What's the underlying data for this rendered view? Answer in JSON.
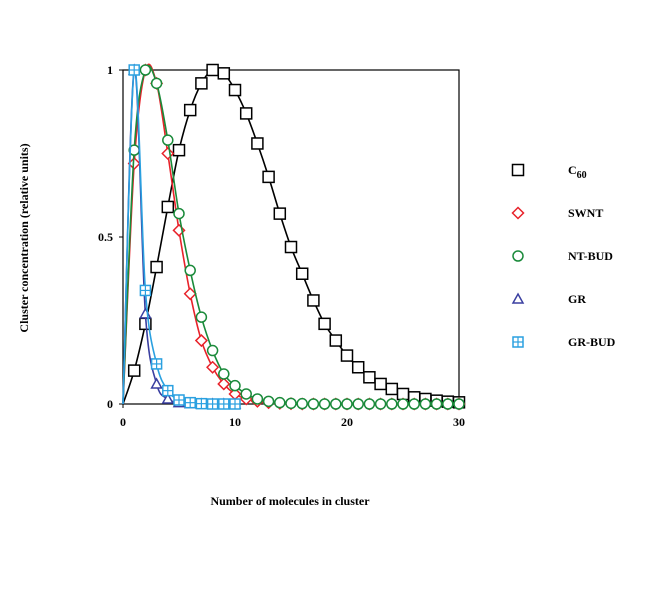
{
  "chart_data": {
    "type": "line",
    "title": "",
    "xlabel": "Number of molecules in cluster",
    "ylabel": "Cluster concentration (relative units)",
    "xlim": [
      0,
      30
    ],
    "ylim": [
      0,
      1
    ],
    "x_ticks": [
      0,
      10,
      20,
      30
    ],
    "y_ticks": [
      {
        "value": 0,
        "label": "0"
      },
      {
        "value": 0.5,
        "label": "0.5"
      },
      {
        "value": 1,
        "label": "1"
      }
    ],
    "grid": false,
    "legend_position": "right",
    "series": [
      {
        "name": "C60",
        "name_main": "C",
        "name_sub": "60",
        "marker": "square",
        "color": "#000000",
        "x": [
          0,
          1,
          2,
          3,
          4,
          5,
          6,
          7,
          8,
          9,
          10,
          11,
          12,
          13,
          14,
          15,
          16,
          17,
          18,
          19,
          20,
          21,
          22,
          23,
          24,
          25,
          26,
          27,
          28,
          29,
          30
        ],
        "y": [
          0,
          0.1,
          0.24,
          0.41,
          0.59,
          0.76,
          0.88,
          0.96,
          1.0,
          0.99,
          0.94,
          0.87,
          0.78,
          0.68,
          0.57,
          0.47,
          0.39,
          0.31,
          0.24,
          0.19,
          0.145,
          0.11,
          0.08,
          0.06,
          0.045,
          0.03,
          0.02,
          0.015,
          0.01,
          0.007,
          0.005
        ]
      },
      {
        "name": "SWNT",
        "marker": "diamond",
        "color": "#e8222a",
        "x": [
          0,
          1,
          2,
          3,
          4,
          5,
          6,
          7,
          8,
          9,
          10,
          11,
          12,
          13,
          14,
          15,
          16,
          17,
          18,
          19,
          20,
          21,
          22,
          23,
          24,
          25,
          26,
          27,
          28,
          29,
          30
        ],
        "y": [
          0,
          0.72,
          1.0,
          0.96,
          0.75,
          0.52,
          0.33,
          0.19,
          0.11,
          0.06,
          0.03,
          0.015,
          0.008,
          0.004,
          0.002,
          0.001,
          0,
          0,
          0,
          0,
          0,
          0,
          0,
          0,
          0,
          0,
          0,
          0,
          0,
          0,
          0
        ]
      },
      {
        "name": "NT-BUD",
        "marker": "circle",
        "color": "#1a8a3a",
        "x": [
          0,
          1,
          2,
          3,
          4,
          5,
          6,
          7,
          8,
          9,
          10,
          11,
          12,
          13,
          14,
          15,
          16,
          17,
          18,
          19,
          20,
          21,
          22,
          23,
          24,
          25,
          26,
          27,
          28,
          29,
          30
        ],
        "y": [
          0,
          0.76,
          1.0,
          0.96,
          0.79,
          0.57,
          0.4,
          0.26,
          0.16,
          0.09,
          0.055,
          0.03,
          0.015,
          0.008,
          0.004,
          0.002,
          0.001,
          0,
          0,
          0,
          0,
          0,
          0,
          0,
          0,
          0,
          0,
          0,
          0,
          0,
          0
        ]
      },
      {
        "name": "GR",
        "marker": "triangle",
        "color": "#3a3fa0",
        "x": [
          0,
          1,
          2,
          3,
          4,
          5,
          6,
          7,
          8,
          9,
          10
        ],
        "y": [
          0,
          1.0,
          0.27,
          0.06,
          0.015,
          0.004,
          0.001,
          0,
          0,
          0,
          0
        ]
      },
      {
        "name": "GR-BUD",
        "marker": "squareplus",
        "color": "#2aa0e0",
        "x": [
          0,
          1,
          2,
          3,
          4,
          5,
          6,
          7,
          8,
          9,
          10
        ],
        "y": [
          0,
          1.0,
          0.34,
          0.12,
          0.04,
          0.012,
          0.004,
          0.001,
          0,
          0,
          0
        ]
      }
    ]
  }
}
